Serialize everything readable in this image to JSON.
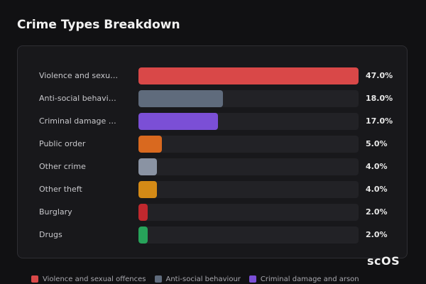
{
  "chart_data": {
    "type": "bar",
    "orientation": "horizontal",
    "title": "Crime Types Breakdown",
    "categories": [
      "Violence and sexual offences",
      "Anti-social behaviour",
      "Criminal damage and arson",
      "Public order",
      "Other crime",
      "Other theft",
      "Burglary",
      "Drugs"
    ],
    "values": [
      47.0,
      18.0,
      17.0,
      5.0,
      4.0,
      4.0,
      2.0,
      2.0
    ],
    "value_labels": [
      "47.0%",
      "18.0%",
      "17.0%",
      "5.0%",
      "4.0%",
      "4.0%",
      "2.0%",
      "2.0%"
    ],
    "colors": [
      "#d94848",
      "#5f6b7c",
      "#7b4fd6",
      "#d9691f",
      "#8a93a3",
      "#d48a16",
      "#c0282e",
      "#27a35a"
    ]
  },
  "logo": "scOS"
}
